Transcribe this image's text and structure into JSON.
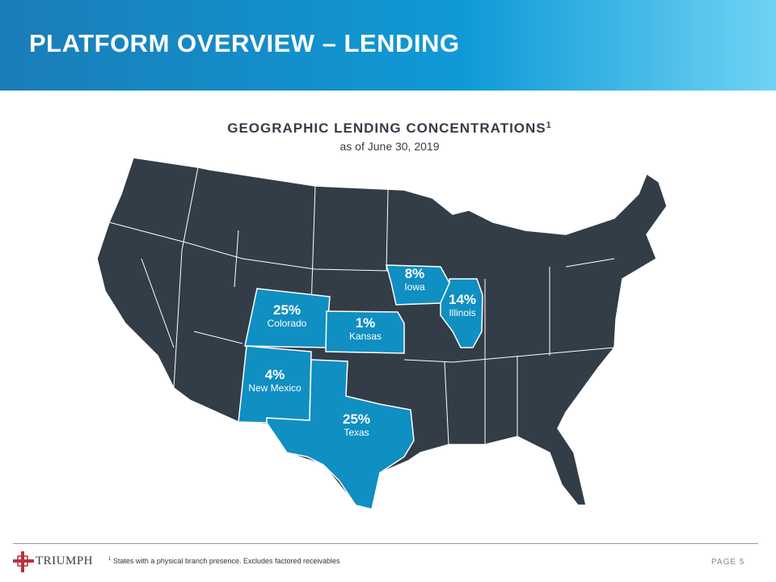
{
  "header": {
    "title": "PLATFORM OVERVIEW – LENDING"
  },
  "map": {
    "title": "GEOGRAPHIC LENDING CONCENTRATIONS",
    "title_note": "1",
    "subtitle": "as of June 30, 2019",
    "regions": [
      {
        "name": "Colorado",
        "share": "25%"
      },
      {
        "name": "Kansas",
        "share": "1%"
      },
      {
        "name": "New Mexico",
        "share": "4%"
      },
      {
        "name": "Texas",
        "share": "25%"
      },
      {
        "name": "Iowa",
        "share": "8%"
      },
      {
        "name": "Illinois",
        "share": "14%"
      }
    ]
  },
  "footer": {
    "logo": "TRIUMPH",
    "note_mark": "1",
    "note": "States with a physical branch presence. Excludes factored receivables",
    "page": "PAGE 5"
  }
}
